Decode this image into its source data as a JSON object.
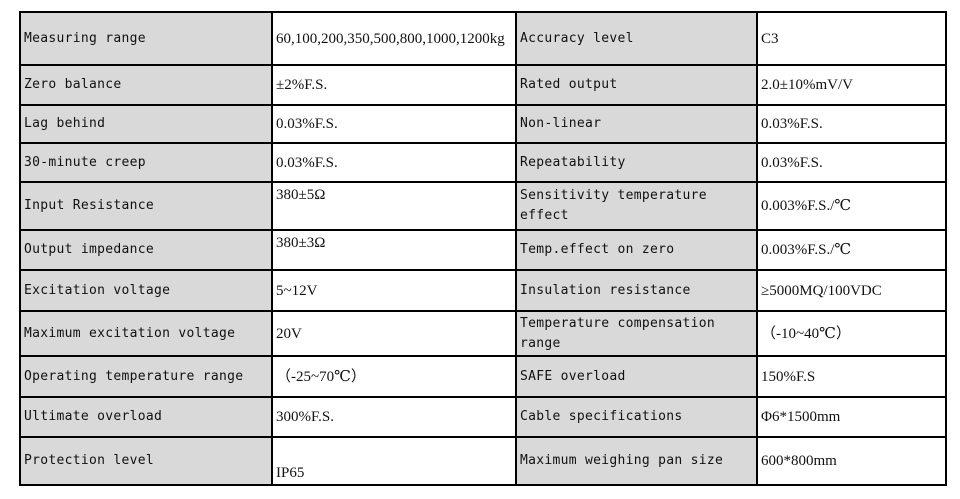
{
  "rows": [
    [
      {
        "label": "Measuring range",
        "value": "60,100,200,350,500,800,1000,1200kg"
      },
      {
        "label": "Accuracy level",
        "value": "C3"
      }
    ],
    [
      {
        "label": "Zero balance",
        "value": "±2%F.S."
      },
      {
        "label": "Rated output",
        "value": "2.0±10%mV/V"
      }
    ],
    [
      {
        "label": "Lag behind",
        "value": "0.03%F.S."
      },
      {
        "label": "Non-linear",
        "value": "0.03%F.S."
      }
    ],
    [
      {
        "label": "30-minute creep",
        "value": "0.03%F.S."
      },
      {
        "label": "Repeatability",
        "value": "0.03%F.S."
      }
    ],
    [
      {
        "label": "Input Resistance",
        "value": "380±5Ω"
      },
      {
        "label": "Sensitivity temperature effect",
        "value": "0.003%F.S./℃"
      }
    ],
    [
      {
        "label": "Output impedance",
        "value": "380±3Ω"
      },
      {
        "label": "Temp.effect on zero",
        "value": "0.003%F.S./℃"
      }
    ],
    [
      {
        "label": "Excitation voltage",
        "value": "5~12V"
      },
      {
        "label": "Insulation resistance",
        "value": "≥5000MQ/100VDC"
      }
    ],
    [
      {
        "label": "Maximum excitation voltage",
        "value": "20V"
      },
      {
        "label": "Temperature compensation range",
        "value": "（-10~40℃）"
      }
    ],
    [
      {
        "label": "Operating temperature range",
        "value": "（-25~70℃）"
      },
      {
        "label": "SAFE overload",
        "value": "150%F.S"
      }
    ],
    [
      {
        "label": "Ultimate overload",
        "value": "300%F.S."
      },
      {
        "label": "Cable specifications",
        "value": "Φ6*1500mm"
      }
    ],
    [
      {
        "label": "Protection level",
        "value": "IP65"
      },
      {
        "label": "Maximum weighing pan size",
        "value": "600*800mm"
      }
    ]
  ]
}
